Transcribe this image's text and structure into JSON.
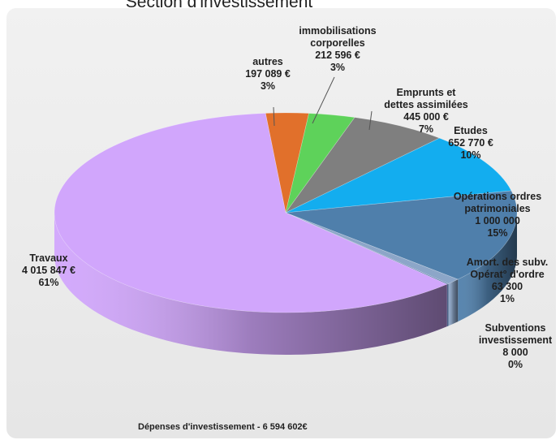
{
  "title": "Section d'investissement",
  "footer": "Dépenses d'investissement - 6 594 602€",
  "chart_data": {
    "type": "pie",
    "title": "Section d'investissement",
    "total_label": "Dépenses d'investissement - 6 594 602€",
    "slices": [
      {
        "label": [
          "autres",
          "197 089 €",
          "3%"
        ],
        "value": 197089,
        "color": "#e1702b"
      },
      {
        "label": [
          "immobilisations",
          "corporelles",
          "212 596 €",
          "3%"
        ],
        "value": 212596,
        "color": "#5ed25a"
      },
      {
        "label": [
          "Emprunts et",
          "dettes assimilées",
          "445 000 €",
          "7%"
        ],
        "value": 445000,
        "color": "#7f7f7f"
      },
      {
        "label": [
          "Etudes",
          "652 770 €",
          "10%"
        ],
        "value": 652770,
        "color": "#13adef"
      },
      {
        "label": [
          "Opérations ordres",
          "patrimoniales",
          "1 000 000",
          "15%"
        ],
        "value": 1000000,
        "color": "#4f7fab"
      },
      {
        "label": [
          "Amort. des subv.",
          "Opérat° d'ordre",
          "63 300",
          "1%"
        ],
        "value": 63300,
        "color": "#8ca6c8"
      },
      {
        "label": [
          "Subventions",
          "investissement",
          "8 000",
          "0%"
        ],
        "value": 8000,
        "color": "#5876a8"
      },
      {
        "label": [
          "Travaux",
          "4 015 847 €",
          "61%"
        ],
        "value": 4015847,
        "color": "#d1a6fc"
      }
    ]
  }
}
